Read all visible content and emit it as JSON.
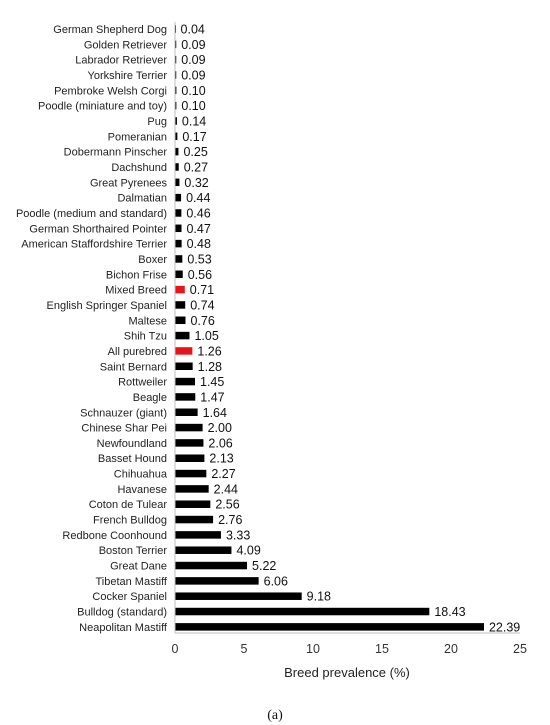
{
  "caption": "(a)",
  "chart_data": {
    "type": "bar",
    "orientation": "horizontal",
    "title": "",
    "xlabel": "Breed prevalence (%)",
    "ylabel": "",
    "xlim": [
      0,
      25
    ],
    "xticks": [
      0,
      5,
      10,
      15,
      20,
      25
    ],
    "grid": false,
    "legend": "none",
    "bar_color": "#000000",
    "highlight_color": "#e8141a",
    "categories": [
      "German Shepherd Dog",
      "Golden Retriever",
      "Labrador Retriever",
      "Yorkshire Terrier",
      "Pembroke Welsh Corgi",
      "Poodle (miniature and toy)",
      "Pug",
      "Pomeranian",
      "Dobermann Pinscher",
      "Dachshund",
      "Great Pyrenees",
      "Dalmatian",
      "Poodle (medium and standard)",
      "German Shorthaired Pointer",
      "American Staffordshire Terrier",
      "Boxer",
      "Bichon Frise",
      "Mixed Breed",
      "English Springer Spaniel",
      "Maltese",
      "Shih Tzu",
      "All purebred",
      "Saint Bernard",
      "Rottweiler",
      "Beagle",
      "Schnauzer (giant)",
      "Chinese Shar Pei",
      "Newfoundland",
      "Basset Hound",
      "Chihuahua",
      "Havanese",
      "Coton de Tulear",
      "French Bulldog",
      "Redbone Coonhound",
      "Boston Terrier",
      "Great Dane",
      "Tibetan Mastiff",
      "Cocker Spaniel",
      "Bulldog (standard)",
      "Neapolitan Mastiff"
    ],
    "values": [
      0.04,
      0.09,
      0.09,
      0.09,
      0.1,
      0.1,
      0.14,
      0.17,
      0.25,
      0.27,
      0.32,
      0.44,
      0.46,
      0.47,
      0.48,
      0.53,
      0.56,
      0.71,
      0.74,
      0.76,
      1.05,
      1.26,
      1.28,
      1.45,
      1.47,
      1.64,
      2.0,
      2.06,
      2.13,
      2.27,
      2.44,
      2.56,
      2.76,
      3.33,
      4.09,
      5.22,
      6.06,
      9.18,
      18.43,
      22.39
    ],
    "value_labels": [
      "0.04",
      "0.09",
      "0.09",
      "0.09",
      "0.10",
      "0.10",
      "0.14",
      "0.17",
      "0.25",
      "0.27",
      "0.32",
      "0.44",
      "0.46",
      "0.47",
      "0.48",
      "0.53",
      "0.56",
      "0.71",
      "0.74",
      "0.76",
      "1.05",
      "1.26",
      "1.28",
      "1.45",
      "1.47",
      "1.64",
      "2.00",
      "2.06",
      "2.13",
      "2.27",
      "2.44",
      "2.56",
      "2.76",
      "3.33",
      "4.09",
      "5.22",
      "6.06",
      "9.18",
      "18.43",
      "22.39"
    ],
    "highlighted": [
      "Mixed Breed",
      "All purebred"
    ]
  }
}
